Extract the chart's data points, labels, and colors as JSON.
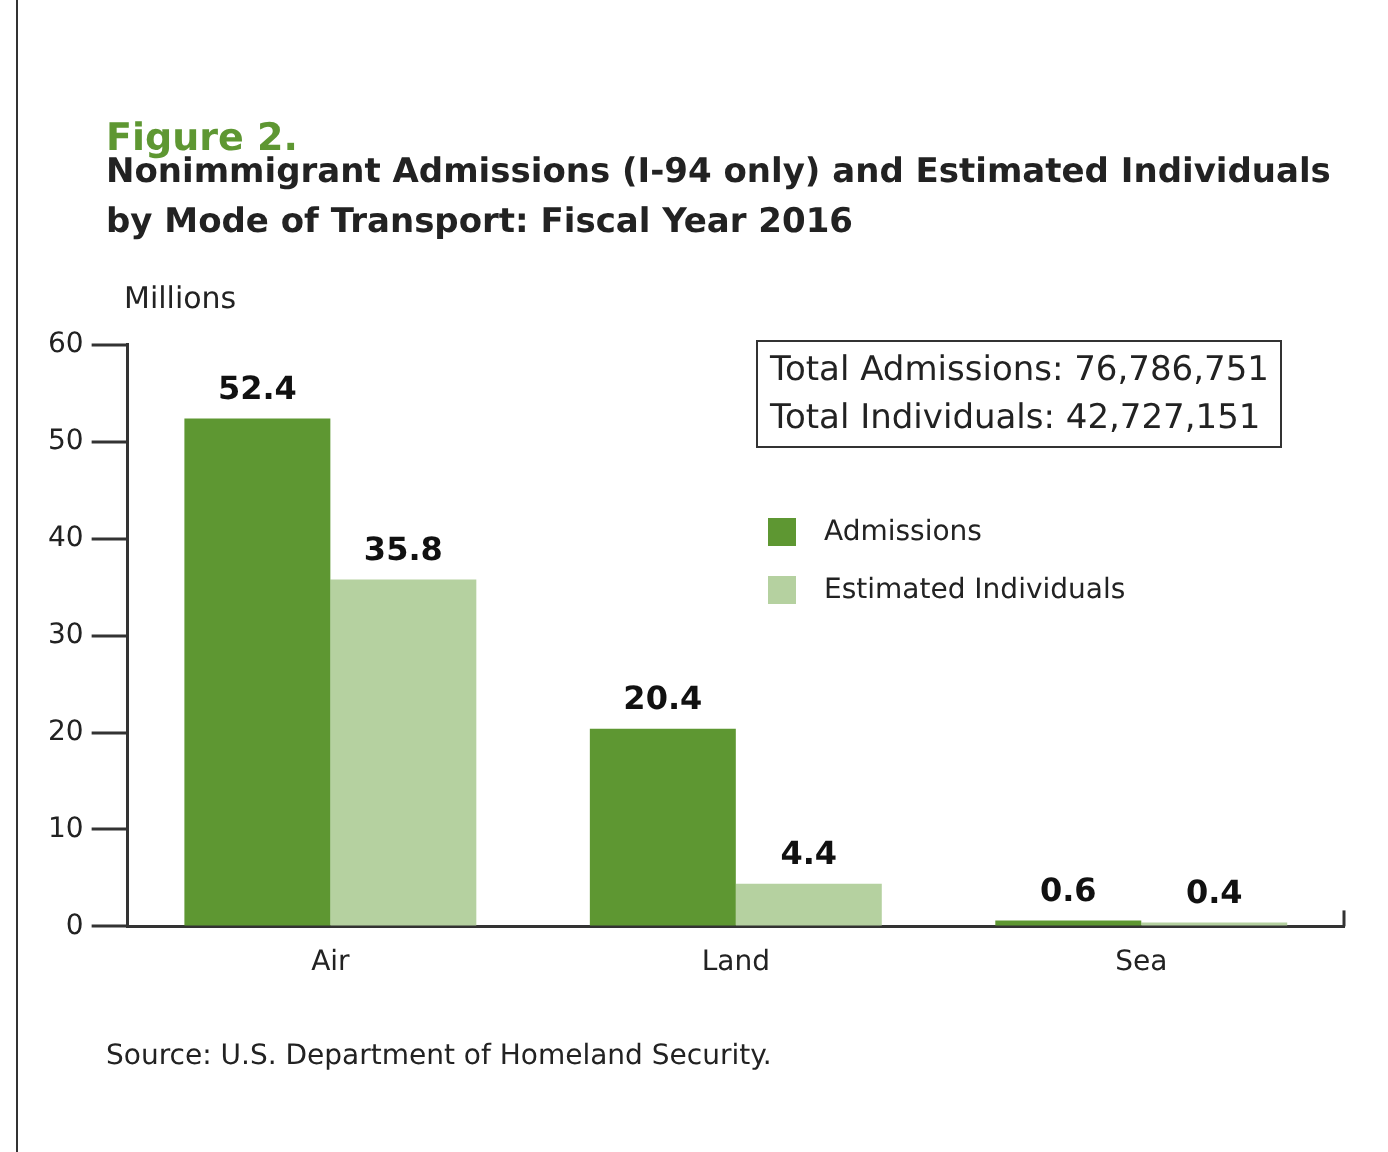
{
  "chart_data": {
    "type": "bar",
    "title": "Figure 2.",
    "subtitle": "Nonimmigrant Admissions (I-94 only) and Estimated Individuals by Mode of Transport: Fiscal Year 2016",
    "ylabel": "Millions",
    "categories": [
      "Air",
      "Land",
      "Sea"
    ],
    "series": [
      {
        "name": "Admissions",
        "color": "#5e9732",
        "values": [
          52.4,
          20.4,
          0.6
        ]
      },
      {
        "name": "Estimated Individuals",
        "color": "#b5d1a0",
        "values": [
          35.8,
          4.4,
          0.4
        ]
      }
    ],
    "ylim": [
      0,
      60
    ],
    "yticks": [
      0,
      10,
      20,
      30,
      40,
      50,
      60
    ],
    "grid": false,
    "legend": "top right",
    "data_labels": true,
    "annotations": [
      "Total Admissions: 76,786,751",
      "Total Individuals: 42,727,151",
      "Source: U.S. Department of Homeland Security."
    ]
  }
}
